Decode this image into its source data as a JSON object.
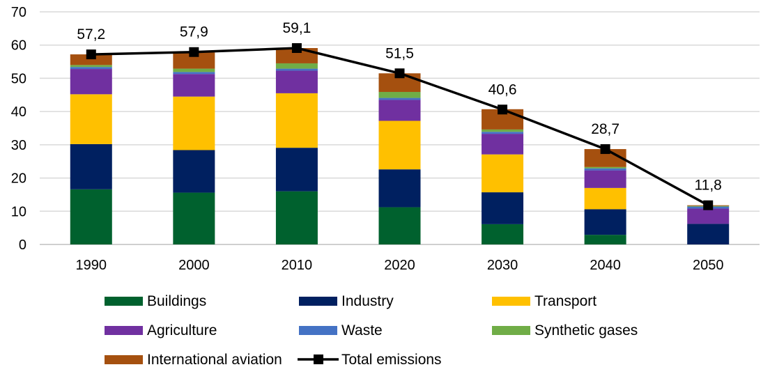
{
  "chart_data": {
    "type": "bar",
    "stacked": true,
    "categories": [
      "1990",
      "2000",
      "2010",
      "2020",
      "2030",
      "2040",
      "2050"
    ],
    "ylim": [
      0,
      70
    ],
    "yticks": [
      0,
      10,
      20,
      30,
      40,
      50,
      60,
      70
    ],
    "grid": true,
    "legend_position": "bottom",
    "series": [
      {
        "name": "Buildings",
        "color": "#00612E",
        "values": [
          16.6,
          15.6,
          16.0,
          11.2,
          6.1,
          2.9,
          0.0
        ]
      },
      {
        "name": "Industry",
        "color": "#002060",
        "values": [
          13.6,
          12.8,
          13.1,
          11.4,
          9.6,
          7.7,
          6.2
        ]
      },
      {
        "name": "Transport",
        "color": "#FFC000",
        "values": [
          15.0,
          16.1,
          16.4,
          14.6,
          11.4,
          6.4,
          0.0
        ]
      },
      {
        "name": "Agriculture",
        "color": "#7030A0",
        "values": [
          7.6,
          6.8,
          6.8,
          6.3,
          6.2,
          5.3,
          4.6
        ]
      },
      {
        "name": "Waste",
        "color": "#4472C4",
        "values": [
          0.6,
          0.6,
          0.6,
          0.6,
          0.6,
          0.6,
          0.6
        ]
      },
      {
        "name": "Synthetic gases",
        "color": "#70AD47",
        "values": [
          0.6,
          1.0,
          1.6,
          1.8,
          0.7,
          0.4,
          0.2
        ]
      },
      {
        "name": "International aviation",
        "color": "#A5500F",
        "values": [
          3.2,
          4.9,
          4.6,
          5.6,
          6.1,
          5.4,
          0.2
        ]
      }
    ],
    "line": {
      "name": "Total emissions",
      "color": "#000000",
      "values": [
        57.2,
        57.9,
        59.1,
        51.5,
        40.6,
        28.7,
        11.8
      ],
      "labels": [
        "57,2",
        "57,9",
        "59,1",
        "51,5",
        "40,6",
        "28,7",
        "11,8"
      ]
    }
  }
}
